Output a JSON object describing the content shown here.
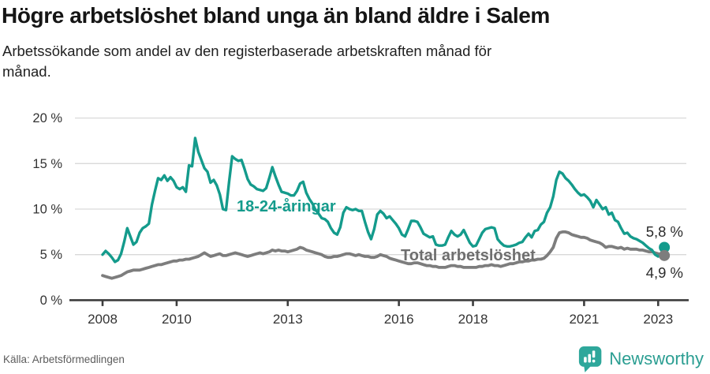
{
  "header": {
    "title": "Högre arbetslöshet bland unga än bland äldre i Salem",
    "subtitle": "Arbetssökande som andel av den registerbaserade arbetskraften månad för månad."
  },
  "footer": {
    "source": "Källa: Arbetsförmedlingen",
    "brand": "Newsworthy"
  },
  "colors": {
    "youth_line": "#149b8c",
    "total_line": "#7d7d7d",
    "total_label": "#6e6e6e",
    "end_label_text": "#2b2b2b",
    "axis_line": "#3d3d3d",
    "tick_text": "#333333",
    "gridline": "#d9d9d9",
    "brand_teal": "#2ea79b"
  },
  "chart_data": {
    "type": "line",
    "title": "Högre arbetslöshet bland unga än bland äldre i Salem",
    "subtitle": "Arbetssökande som andel av den registerbaserade arbetskraften månad för månad.",
    "xlabel": "",
    "ylabel": "",
    "x_unit": "month",
    "x_start": "2008-01",
    "x_end": "2023-03",
    "ylim": [
      0,
      20
    ],
    "grid": "horizontal",
    "legend_position": "inline-labels",
    "y_ticks": [
      0,
      5,
      10,
      15,
      20
    ],
    "y_tick_labels": [
      "0 %",
      "5 %",
      "10 %",
      "15 %",
      "20 %"
    ],
    "x_ticks": [
      2008,
      2010,
      2013,
      2016,
      2018,
      2021,
      2023
    ],
    "x_tick_labels": [
      "2008",
      "2010",
      "2013",
      "2016",
      "2018",
      "2021",
      "2023"
    ],
    "series": [
      {
        "name": "18-24-åringar",
        "color": "#149b8c",
        "end_label": "5,8 %",
        "end_value": 5.8,
        "values": [
          5.0,
          5.4,
          5.1,
          4.7,
          4.2,
          4.4,
          5.1,
          6.4,
          7.9,
          7.0,
          6.1,
          6.4,
          7.4,
          7.9,
          8.1,
          8.4,
          10.5,
          12.0,
          13.4,
          13.2,
          13.7,
          13.1,
          13.5,
          13.1,
          12.4,
          12.2,
          12.4,
          11.9,
          14.8,
          14.7,
          17.8,
          16.3,
          15.4,
          14.5,
          14.1,
          12.9,
          13.2,
          12.6,
          11.6,
          10.0,
          9.9,
          13.0,
          15.8,
          15.5,
          15.3,
          15.4,
          14.4,
          13.3,
          12.7,
          12.5,
          12.2,
          12.1,
          12.0,
          12.3,
          13.4,
          14.6,
          13.6,
          12.7,
          11.9,
          11.8,
          11.7,
          11.5,
          11.5,
          12.0,
          12.8,
          13.0,
          11.8,
          11.1,
          10.6,
          9.9,
          9.5,
          9.0,
          8.9,
          8.6,
          7.9,
          7.4,
          7.2,
          8.0,
          9.6,
          10.2,
          10.0,
          9.9,
          10.0,
          9.8,
          9.8,
          8.6,
          7.5,
          6.7,
          7.8,
          9.4,
          9.8,
          9.5,
          9.0,
          9.2,
          8.8,
          8.4,
          7.9,
          7.2,
          7.0,
          7.8,
          8.7,
          8.7,
          8.6,
          8.0,
          7.3,
          7.1,
          6.9,
          7.0,
          6.1,
          6.0,
          6.0,
          6.1,
          6.9,
          7.6,
          7.2,
          7.0,
          7.2,
          7.7,
          7.0,
          6.3,
          5.9,
          6.0,
          6.7,
          7.4,
          7.8,
          7.9,
          8.0,
          7.9,
          6.7,
          6.3,
          6.0,
          5.9,
          5.9,
          6.0,
          6.1,
          6.3,
          6.4,
          6.9,
          7.3,
          6.9,
          7.6,
          7.7,
          8.3,
          8.6,
          9.6,
          10.2,
          11.4,
          13.2,
          14.1,
          13.9,
          13.4,
          13.1,
          12.7,
          12.2,
          11.8,
          11.5,
          11.6,
          11.3,
          10.9,
          10.2,
          11.0,
          10.5,
          10.0,
          10.2,
          9.4,
          9.6,
          8.8,
          8.6,
          7.9,
          7.3,
          7.4,
          7.0,
          6.8,
          6.7,
          6.5,
          6.3,
          6.0,
          5.7,
          5.5,
          5.0,
          4.8,
          5.0,
          5.8
        ]
      },
      {
        "name": "Total arbetslöshet",
        "color": "#7d7d7d",
        "end_label": "4,9 %",
        "end_value": 4.9,
        "values": [
          2.7,
          2.6,
          2.5,
          2.4,
          2.5,
          2.6,
          2.7,
          2.9,
          3.1,
          3.2,
          3.3,
          3.3,
          3.3,
          3.4,
          3.5,
          3.6,
          3.7,
          3.8,
          3.9,
          3.9,
          4.0,
          4.1,
          4.2,
          4.3,
          4.3,
          4.4,
          4.4,
          4.5,
          4.5,
          4.6,
          4.7,
          4.8,
          5.0,
          5.2,
          5.0,
          4.8,
          4.9,
          5.0,
          5.1,
          4.9,
          4.9,
          5.0,
          5.1,
          5.2,
          5.1,
          5.0,
          4.9,
          4.8,
          4.9,
          5.0,
          5.1,
          5.2,
          5.1,
          5.2,
          5.3,
          5.5,
          5.4,
          5.5,
          5.4,
          5.4,
          5.3,
          5.4,
          5.5,
          5.6,
          5.8,
          5.7,
          5.5,
          5.4,
          5.3,
          5.2,
          5.1,
          5.0,
          4.8,
          4.7,
          4.7,
          4.8,
          4.8,
          4.9,
          5.0,
          5.1,
          5.1,
          5.0,
          4.9,
          5.0,
          4.9,
          4.8,
          4.8,
          4.7,
          4.7,
          4.8,
          5.0,
          4.9,
          4.8,
          4.6,
          4.5,
          4.4,
          4.3,
          4.2,
          4.1,
          4.0,
          4.0,
          4.1,
          4.1,
          4.0,
          3.9,
          3.8,
          3.8,
          3.7,
          3.7,
          3.6,
          3.6,
          3.6,
          3.7,
          3.8,
          3.8,
          3.7,
          3.7,
          3.6,
          3.6,
          3.6,
          3.6,
          3.6,
          3.7,
          3.7,
          3.8,
          3.8,
          3.9,
          3.8,
          3.8,
          3.7,
          3.8,
          3.9,
          4.0,
          4.0,
          4.1,
          4.2,
          4.2,
          4.3,
          4.3,
          4.4,
          4.4,
          4.5,
          4.5,
          4.6,
          4.9,
          5.3,
          5.8,
          6.8,
          7.4,
          7.5,
          7.5,
          7.4,
          7.2,
          7.1,
          7.0,
          6.9,
          6.9,
          6.8,
          6.6,
          6.5,
          6.4,
          6.3,
          6.1,
          5.8,
          5.9,
          5.9,
          5.8,
          5.7,
          5.8,
          5.6,
          5.7,
          5.6,
          5.6,
          5.6,
          5.5,
          5.5,
          5.4,
          5.3,
          5.3,
          5.2,
          5.1,
          5.0,
          4.9
        ]
      }
    ]
  }
}
